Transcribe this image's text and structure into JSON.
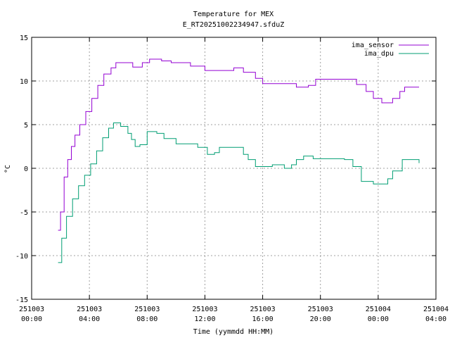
{
  "chart_data": {
    "type": "line",
    "title": "Temperature for MEX",
    "subtitle": "E_RT20251002234947.sfduZ",
    "xlabel": "Time (yymmdd HH:MM)",
    "ylabel": "°C",
    "xlim": [
      "2025-10-03 00:00",
      "2025-10-04 04:00"
    ],
    "ylim": [
      -15,
      15
    ],
    "grid": true,
    "legend_position": "top-right",
    "x_ticks": [
      {
        "date": "251003",
        "time": "00:00"
      },
      {
        "date": "251003",
        "time": "04:00"
      },
      {
        "date": "251003",
        "time": "08:00"
      },
      {
        "date": "251003",
        "time": "12:00"
      },
      {
        "date": "251003",
        "time": "16:00"
      },
      {
        "date": "251003",
        "time": "20:00"
      },
      {
        "date": "251004",
        "time": "00:00"
      },
      {
        "date": "251004",
        "time": "04:00"
      }
    ],
    "y_ticks": [
      "15",
      "10",
      "5",
      "0",
      "-5",
      "-10",
      "-15"
    ],
    "series": [
      {
        "name": "ima_sensor",
        "color": "#9400d3",
        "points": [
          [
            "2025-10-03 01:50",
            -7.1
          ],
          [
            "2025-10-03 02:00",
            -5.0
          ],
          [
            "2025-10-03 02:15",
            -1.0
          ],
          [
            "2025-10-03 02:30",
            1.0
          ],
          [
            "2025-10-03 02:45",
            2.5
          ],
          [
            "2025-10-03 03:00",
            3.8
          ],
          [
            "2025-10-03 03:20",
            5.0
          ],
          [
            "2025-10-03 03:45",
            6.5
          ],
          [
            "2025-10-03 04:10",
            8.0
          ],
          [
            "2025-10-03 04:35",
            9.5
          ],
          [
            "2025-10-03 05:00",
            10.8
          ],
          [
            "2025-10-03 05:30",
            11.5
          ],
          [
            "2025-10-03 05:50",
            12.1
          ],
          [
            "2025-10-03 07:00",
            11.6
          ],
          [
            "2025-10-03 07:40",
            12.1
          ],
          [
            "2025-10-03 08:10",
            12.5
          ],
          [
            "2025-10-03 09:00",
            12.3
          ],
          [
            "2025-10-03 09:40",
            12.1
          ],
          [
            "2025-10-03 11:00",
            11.7
          ],
          [
            "2025-10-03 12:00",
            11.2
          ],
          [
            "2025-10-03 13:30",
            11.2
          ],
          [
            "2025-10-03 14:00",
            11.5
          ],
          [
            "2025-10-03 14:40",
            11.0
          ],
          [
            "2025-10-03 15:30",
            10.3
          ],
          [
            "2025-10-03 16:00",
            9.7
          ],
          [
            "2025-10-03 17:50",
            9.7
          ],
          [
            "2025-10-03 18:20",
            9.3
          ],
          [
            "2025-10-03 19:10",
            9.5
          ],
          [
            "2025-10-03 19:40",
            10.2
          ],
          [
            "2025-10-03 22:00",
            10.2
          ],
          [
            "2025-10-03 22:30",
            9.6
          ],
          [
            "2025-10-03 23:10",
            8.8
          ],
          [
            "2025-10-03 23:40",
            8.0
          ],
          [
            "2025-10-04 00:15",
            7.5
          ],
          [
            "2025-10-04 01:00",
            8.0
          ],
          [
            "2025-10-04 01:30",
            8.8
          ],
          [
            "2025-10-04 01:50",
            9.3
          ],
          [
            "2025-10-04 02:50",
            9.3
          ]
        ]
      },
      {
        "name": "ima_dpu",
        "color": "#009e73",
        "points": [
          [
            "2025-10-03 01:50",
            -10.8
          ],
          [
            "2025-10-03 02:05",
            -8.0
          ],
          [
            "2025-10-03 02:25",
            -5.5
          ],
          [
            "2025-10-03 02:50",
            -3.5
          ],
          [
            "2025-10-03 03:15",
            -2.0
          ],
          [
            "2025-10-03 03:40",
            -0.8
          ],
          [
            "2025-10-03 04:05",
            0.5
          ],
          [
            "2025-10-03 04:30",
            2.0
          ],
          [
            "2025-10-03 04:55",
            3.5
          ],
          [
            "2025-10-03 05:20",
            4.6
          ],
          [
            "2025-10-03 05:40",
            5.2
          ],
          [
            "2025-10-03 06:10",
            4.8
          ],
          [
            "2025-10-03 06:40",
            4.0
          ],
          [
            "2025-10-03 06:55",
            3.3
          ],
          [
            "2025-10-03 07:10",
            2.5
          ],
          [
            "2025-10-03 07:30",
            2.7
          ],
          [
            "2025-10-03 08:00",
            4.2
          ],
          [
            "2025-10-03 08:40",
            4.0
          ],
          [
            "2025-10-03 09:10",
            3.4
          ],
          [
            "2025-10-03 10:00",
            2.8
          ],
          [
            "2025-10-03 11:30",
            2.4
          ],
          [
            "2025-10-03 12:10",
            1.6
          ],
          [
            "2025-10-03 12:40",
            1.8
          ],
          [
            "2025-10-03 13:00",
            2.4
          ],
          [
            "2025-10-03 14:10",
            2.4
          ],
          [
            "2025-10-03 14:40",
            1.6
          ],
          [
            "2025-10-03 15:00",
            1.0
          ],
          [
            "2025-10-03 15:30",
            0.2
          ],
          [
            "2025-10-03 16:40",
            0.4
          ],
          [
            "2025-10-03 17:30",
            0.0
          ],
          [
            "2025-10-03 18:00",
            0.4
          ],
          [
            "2025-10-03 18:20",
            1.0
          ],
          [
            "2025-10-03 18:50",
            1.4
          ],
          [
            "2025-10-03 19:30",
            1.1
          ],
          [
            "2025-10-03 21:40",
            1.0
          ],
          [
            "2025-10-03 22:15",
            0.2
          ],
          [
            "2025-10-03 22:50",
            -1.5
          ],
          [
            "2025-10-03 23:40",
            -1.8
          ],
          [
            "2025-10-04 00:10",
            -1.8
          ],
          [
            "2025-10-04 00:40",
            -1.2
          ],
          [
            "2025-10-04 01:00",
            -0.3
          ],
          [
            "2025-10-04 01:40",
            1.0
          ],
          [
            "2025-10-04 02:30",
            1.0
          ],
          [
            "2025-10-04 02:50",
            0.6
          ]
        ]
      }
    ]
  }
}
